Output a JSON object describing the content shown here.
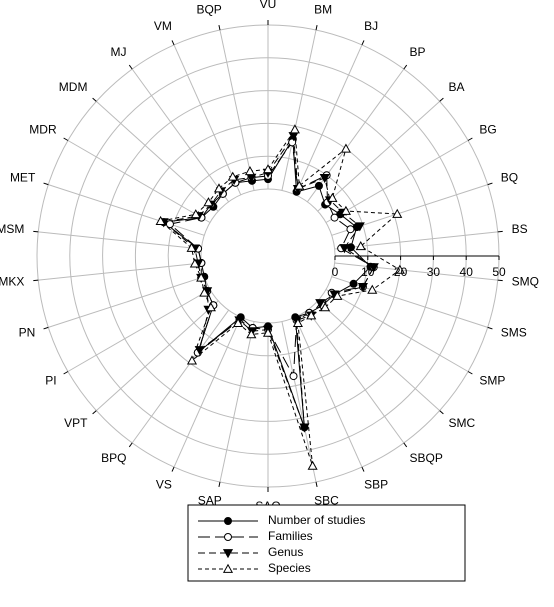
{
  "chart_data": {
    "type": "radar",
    "categories": [
      "VU",
      "BM",
      "BJ",
      "BP",
      "BA",
      "BG",
      "BQ",
      "BS",
      "SMQ",
      "SMS",
      "SMP",
      "SMC",
      "SBQP",
      "SBP",
      "SBC",
      "SAQ",
      "SAP",
      "VS",
      "BPQ",
      "VPT",
      "PI",
      "PN",
      "MKX",
      "MSM",
      "MET",
      "MDR",
      "MDM",
      "MJ",
      "VM",
      "BQP"
    ],
    "rlim": [
      0,
      50
    ],
    "rticks": [
      0,
      10,
      20,
      30,
      40,
      50
    ],
    "grid": true,
    "legend_position": "bottom",
    "series": [
      {
        "name": "Number of studies",
        "color": "#000000",
        "line_style": "solid",
        "marker": "circle-filled",
        "values": [
          3,
          16,
          1,
          6,
          3,
          5,
          8,
          5,
          11,
          7,
          3,
          2,
          1,
          0,
          33,
          1,
          2,
          0,
          16,
          2,
          1,
          0,
          0,
          1,
          13,
          3,
          2,
          3,
          4,
          3
        ]
      },
      {
        "name": "Families",
        "color": "#000000",
        "line_style": "longdash",
        "marker": "circle-open",
        "values": [
          4,
          15,
          2,
          10,
          4,
          3,
          6,
          2,
          12,
          10,
          2,
          2,
          1,
          1,
          17,
          2,
          2,
          1,
          16,
          2,
          1,
          1,
          0,
          1,
          11,
          3,
          3,
          3,
          4,
          4
        ]
      },
      {
        "name": "Genus",
        "color": "#000000",
        "line_style": "dash",
        "marker": "triangle-down-filled",
        "values": [
          5,
          17,
          2,
          9,
          5,
          6,
          9,
          3,
          12,
          10,
          3,
          1,
          2,
          1,
          33,
          2,
          3,
          1,
          15,
          4,
          1,
          1,
          1,
          2,
          13,
          4,
          3,
          4,
          5,
          4
        ]
      },
      {
        "name": "Species",
        "color": "#000000",
        "line_style": "shortdash",
        "marker": "triangle-up-open",
        "values": [
          6,
          19,
          3,
          20,
          6,
          7,
          21,
          8,
          20,
          13,
          4,
          3,
          2,
          2,
          45,
          3,
          4,
          2,
          19,
          3,
          2,
          1,
          2,
          3,
          14,
          5,
          4,
          5,
          6,
          6
        ]
      }
    ]
  }
}
